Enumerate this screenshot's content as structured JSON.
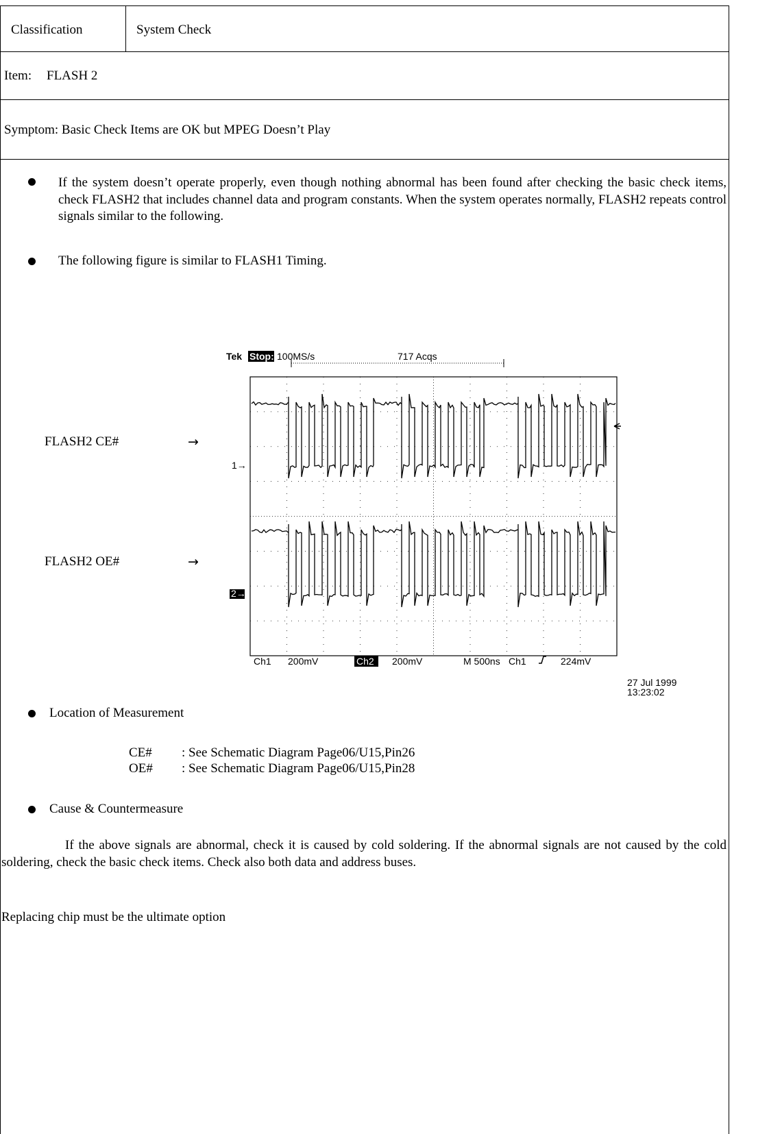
{
  "header": {
    "classification_label": "Classification",
    "classification": "System Check",
    "item_label": "Item:",
    "item": "FLASH 2",
    "symptom": "Symptom: Basic Check Items are OK but MPEG Doesn’t Play"
  },
  "body": {
    "bullets": [
      "If the system doesn’t operate properly, even though nothing abnormal has been found after checking the basic check items, check FLASH2 that includes channel data and program constants. When the system operates normally, FLASH2 repeats control signals similar to the following.",
      "The following figure is similar to FLASH1 Timing."
    ],
    "figure": {
      "labels": [
        {
          "name": "FLASH2 CE#",
          "arrow": "→"
        },
        {
          "name": "FLASH2 OE#",
          "arrow": "→"
        }
      ],
      "scope": {
        "brand": "Tek",
        "status": "Stop:",
        "rate": "100MS/s",
        "acqs": "717 Acqs",
        "ch1_marker": "1→",
        "ch2_marker": "2→",
        "ch1": "Ch1",
        "ch1_scale": "200mV",
        "ch2": "Ch2",
        "ch2_scale": "200mV",
        "timebase": "M 500ns",
        "trigger_source": "Ch1",
        "trigger_level": "224mV",
        "date": "27 Jul 1999",
        "time": "13:23:02"
      }
    },
    "location": {
      "heading": "Location of Measurement",
      "rows": [
        {
          "signal": "CE#",
          "text": ": See Schematic Diagram Page06/U15,Pin26"
        },
        {
          "signal": "OE#",
          "text": ": See Schematic Diagram Page06/U15,Pin28"
        }
      ]
    },
    "cause": {
      "heading": "Cause & Countermeasure",
      "text": "If the above signals are abnormal, check it is caused by cold soldering. If the abnormal signals are not caused by the cold soldering, check the basic check items. Check also both data and address buses.",
      "note": "Replacing chip must be the ultimate option"
    }
  }
}
